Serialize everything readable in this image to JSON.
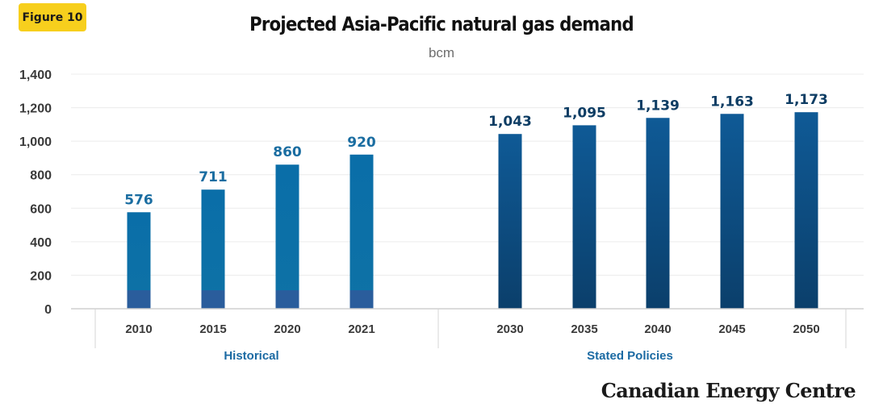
{
  "figure_label": "Figure 10",
  "brand": "Canadian Energy Centre",
  "chart_data": {
    "type": "bar",
    "title": "Projected Asia-Pacific natural gas demand",
    "unit": "bcm",
    "ylim": [
      0,
      1400
    ],
    "yticks": [
      0,
      200,
      400,
      600,
      800,
      1000,
      1200,
      1400
    ],
    "ytick_labels": [
      "0",
      "200",
      "400",
      "600",
      "800",
      "1,000",
      "1,200",
      "1,400"
    ],
    "grid": true,
    "groups": [
      {
        "name": "Historical",
        "categories": [
          "2010",
          "2015",
          "2020",
          "2021"
        ],
        "values": [
          576,
          711,
          860,
          920
        ],
        "labels": [
          "576",
          "711",
          "860",
          "920"
        ]
      },
      {
        "name": "Stated Policies",
        "categories": [
          "2030",
          "2035",
          "2040",
          "2045",
          "2050"
        ],
        "values": [
          1043,
          1095,
          1139,
          1163,
          1173
        ],
        "labels": [
          "1,043",
          "1,095",
          "1,139",
          "1,163",
          "1,173"
        ]
      }
    ],
    "colors": {
      "historical": "#0e6fa6",
      "historical_base": "#2a5d9c",
      "projection_top": "#0f5a96",
      "projection_bottom": "#0b3f6b",
      "historical_label": "#1a6da1",
      "projection_label": "#0e3d64",
      "group_label": "#1b6aa3",
      "axis_text": "#3a3a3a"
    }
  }
}
